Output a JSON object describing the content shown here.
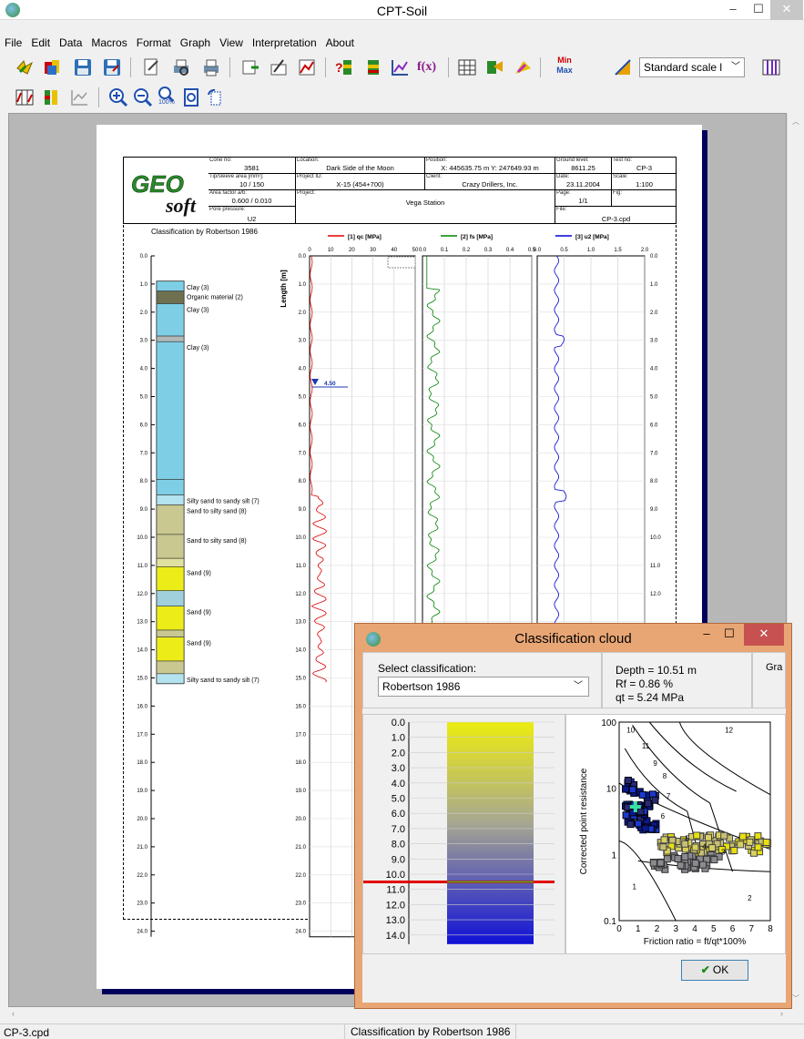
{
  "app": {
    "title": "CPT-Soil"
  },
  "menu": [
    "File",
    "Edit",
    "Data",
    "Macros",
    "Format",
    "Graph",
    "View",
    "Interpretation",
    "About"
  ],
  "toolbar": {
    "scale_select": "Standard scale l",
    "fx_label": "f(x)",
    "min_label": "Min",
    "max_label": "Max",
    "zoom_100": "100%"
  },
  "status": {
    "file": "CP-3.cpd",
    "message": "Classification by Robertson 1986"
  },
  "report": {
    "cone_no_label": "Cone no:",
    "cone_no": "3581",
    "tip_area_label": "Tip/sleeve area [mm²]:",
    "tip_area": "10 / 150",
    "area_factor_label": "Area factor a/b:",
    "area_factor": "0.600 / 0.010",
    "pore_label": "Pore pressure:",
    "pore": "U2",
    "location_label": "Location:",
    "location": "Dark Side of the Moon",
    "project_id_label": "Project ID:",
    "project_id": "X-15 (454+700)",
    "project_label": "Project:",
    "project": "Vega Station",
    "position_label": "Position:",
    "position": "X: 445635.75 m   Y: 247649.93 m",
    "client_label": "Client:",
    "client": "Crazy Drillers, Inc.",
    "ground_label": "Ground level:",
    "ground": "8611.25",
    "test_label": "Test no:",
    "test": "CP-3",
    "date_label": "Date:",
    "date": "23.11.2004",
    "scale_label": "Scale:",
    "scale": "1:100",
    "page_label": "Page:",
    "page": "1/1",
    "fig_label": "Fig:",
    "file_label": "File:",
    "file": "CP-3.cpd",
    "classification_title": "Classification by Robertson 1986",
    "length_axis": "Length [m]",
    "water_level": "4.50",
    "depth_ticks": [
      "0.0",
      "1.0",
      "2.0",
      "3.0",
      "4.0",
      "5.0",
      "6.0",
      "7.0",
      "8.0",
      "9.0",
      "10.0",
      "11.0",
      "12.0",
      "13.0",
      "14.0",
      "15.0",
      "16.0",
      "17.0",
      "18.0",
      "19.0",
      "20.0",
      "21.0",
      "22.0",
      "23.0",
      "24.0"
    ],
    "series": [
      {
        "name": "[1] qc [MPa]",
        "color": "#e00000",
        "ticks": [
          "0",
          "10",
          "20",
          "30",
          "40",
          "50"
        ]
      },
      {
        "name": "[2] fs [MPa]",
        "color": "#008000",
        "ticks": [
          "0.0",
          "0.1",
          "0.2",
          "0.3",
          "0.4",
          "0.5"
        ]
      },
      {
        "name": "[3] u2 [MPa]",
        "color": "#0000d0",
        "ticks": [
          "0.0",
          "0.5",
          "1.0",
          "1.5",
          "2.0"
        ]
      }
    ],
    "layers": [
      {
        "label": "Clay (3)",
        "top": 0.9,
        "bottom": 1.25,
        "color": "#7ecfe6"
      },
      {
        "label": "Organic material (2)",
        "top": 1.25,
        "bottom": 1.7,
        "color": "#6e7050"
      },
      {
        "label": "Clay (3)",
        "top": 1.7,
        "bottom": 2.85,
        "color": "#7ecfe6"
      },
      {
        "label": "",
        "top": 2.85,
        "bottom": 3.05,
        "color": "#b0b8b8"
      },
      {
        "label": "Clay (3)",
        "top": 3.05,
        "bottom": 7.95,
        "color": "#7ecfe6"
      },
      {
        "label": "",
        "top": 7.95,
        "bottom": 8.5,
        "color": "#7ecfe6"
      },
      {
        "label": "Silty sand to sandy silt (7)",
        "top": 8.5,
        "bottom": 8.85,
        "color": "#b3e3ee"
      },
      {
        "label": "Sand to silty sand (8)",
        "top": 8.85,
        "bottom": 9.9,
        "color": "#c8c890"
      },
      {
        "label": "Sand to silty sand (8)",
        "top": 9.9,
        "bottom": 10.75,
        "color": "#c8c890"
      },
      {
        "label": "",
        "top": 10.75,
        "bottom": 11.05,
        "color": "#e0e0a0"
      },
      {
        "label": "Sand (9)",
        "top": 11.05,
        "bottom": 11.9,
        "color": "#ecec18"
      },
      {
        "label": "",
        "top": 11.9,
        "bottom": 12.45,
        "color": "#9fd0dc"
      },
      {
        "label": "Sand (9)",
        "top": 12.45,
        "bottom": 13.3,
        "color": "#ecec18"
      },
      {
        "label": "",
        "top": 13.3,
        "bottom": 13.55,
        "color": "#c8c890"
      },
      {
        "label": "Sand (9)",
        "top": 13.55,
        "bottom": 14.4,
        "color": "#ecec18"
      },
      {
        "label": "",
        "top": 14.4,
        "bottom": 14.85,
        "color": "#c8c890"
      },
      {
        "label": "Silty sand to sandy silt (7)",
        "top": 14.85,
        "bottom": 15.2,
        "color": "#b3e3ee"
      }
    ]
  },
  "dialog": {
    "title": "Classification cloud",
    "select_label": "Select classification:",
    "select_value": "Robertson 1986",
    "depth": "Depth = 10.51 m",
    "rf": "Rf = 0.86 %",
    "qt": "qt = 5.24 MPa",
    "gra": "Gra",
    "ok": "OK",
    "depth_ticks": [
      "0.0",
      "1.0",
      "2.0",
      "3.0",
      "4.0",
      "5.0",
      "6.0",
      "7.0",
      "8.0",
      "9.0",
      "10.0",
      "11.0",
      "12.0",
      "13.0",
      "14.0"
    ],
    "current_depth": 10.51,
    "plot": {
      "ylabel": "Corrected point resistance",
      "xlabel": "Friction ratio = ft/qt*100%",
      "xticks": [
        "0",
        "1",
        "2",
        "3",
        "4",
        "5",
        "6",
        "7",
        "8"
      ],
      "yticks": [
        "100",
        "10",
        "1",
        "0.1"
      ],
      "zones": [
        "10",
        "12",
        "11",
        "9",
        "8",
        "7",
        "6",
        "5",
        "4",
        "3",
        "1",
        "2"
      ]
    }
  }
}
